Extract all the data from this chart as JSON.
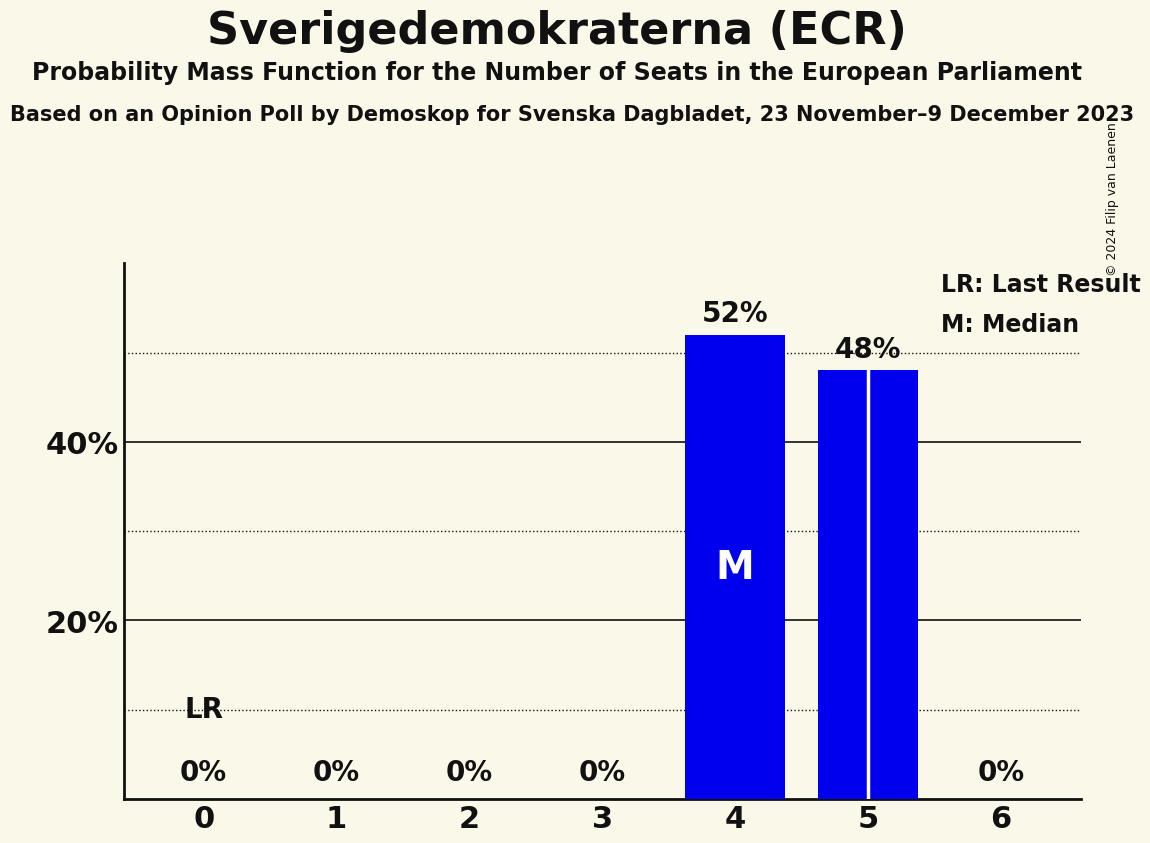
{
  "title": "Sverigedemokraterna (ECR)",
  "subtitle": "Probability Mass Function for the Number of Seats in the European Parliament",
  "source_line": "Based on an Opinion Poll by Demoskop for Svenska Dagbladet, 23 November–9 December 2023",
  "copyright": "© 2024 Filip van Laenen",
  "categories": [
    0,
    1,
    2,
    3,
    4,
    5,
    6
  ],
  "values": [
    0,
    0,
    0,
    0,
    52,
    48,
    0
  ],
  "bar_color": "#0000ee",
  "background_color": "#faf8e8",
  "text_color": "#111111",
  "median_seat": 4,
  "lr_seat": 5,
  "lr_label": "LR",
  "median_label": "M",
  "legend_lr": "LR: Last Result",
  "legend_m": "M: Median",
  "ylim": [
    0,
    60
  ],
  "solid_grid": [
    20,
    40
  ],
  "dotted_grid": [
    10,
    30,
    50
  ],
  "bar_width": 0.75,
  "title_fontsize": 32,
  "subtitle_fontsize": 17,
  "source_fontsize": 15,
  "tick_fontsize": 22,
  "label_fontsize": 20,
  "legend_fontsize": 17,
  "ytick_vals": [
    20,
    40
  ],
  "ytick_labels": [
    "20%",
    "40%"
  ]
}
